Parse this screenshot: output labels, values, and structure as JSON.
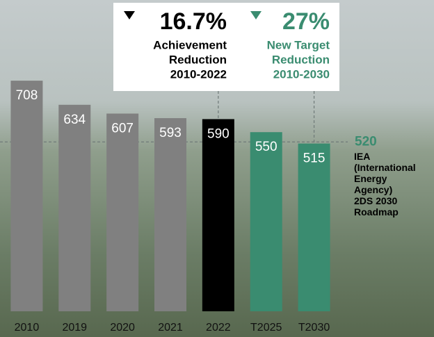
{
  "chart_data": {
    "type": "bar",
    "categories": [
      "2010",
      "2019",
      "2020",
      "2021",
      "2022",
      "T2025",
      "T2030"
    ],
    "values": [
      708,
      634,
      607,
      593,
      590,
      550,
      515
    ],
    "colors": [
      "#808080",
      "#808080",
      "#808080",
      "#808080",
      "#000000",
      "#3a8c70",
      "#3a8c70"
    ],
    "ylim": [
      0,
      800
    ],
    "reference_line": {
      "value": 520,
      "color": "#3a8c70",
      "label_lines": [
        "IEA",
        "(International",
        "Energy",
        "Agency)",
        "2DS 2030",
        "Roadmap"
      ]
    },
    "annotations": [
      {
        "headline": "16.7%",
        "lines": [
          "Achievement",
          "Reduction",
          "2010-2022"
        ],
        "color": "#000000"
      },
      {
        "headline": "27%",
        "lines": [
          "New Target",
          "Reduction",
          "2010-2030"
        ],
        "color": "#3a8c70"
      }
    ]
  }
}
